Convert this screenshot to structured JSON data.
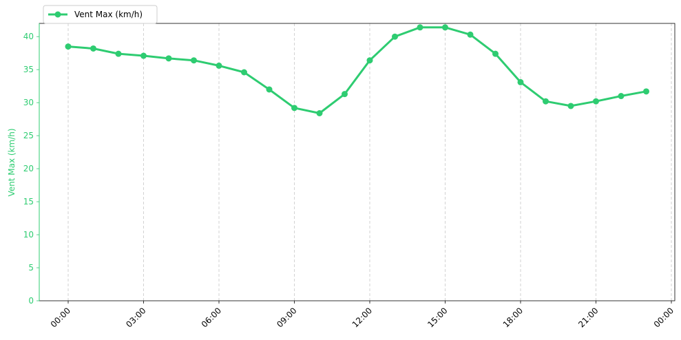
{
  "chart_data": {
    "type": "line",
    "title": "",
    "xlabel": "",
    "ylabel": "Vent Max (km/h)",
    "ylim": [
      0,
      42
    ],
    "grid": "vertical-dashed",
    "legend_position": "top-left",
    "color": "#2ecc71",
    "x_tick_labels": [
      "00:00",
      "03:00",
      "06:00",
      "09:00",
      "12:00",
      "15:00",
      "18:00",
      "21:00",
      "00:00"
    ],
    "x_tick_hours": [
      0,
      3,
      6,
      9,
      12,
      15,
      18,
      21,
      24
    ],
    "y_ticks": [
      0,
      5,
      10,
      15,
      20,
      25,
      30,
      35,
      40
    ],
    "series": [
      {
        "name": "Vent Max (km/h)",
        "x": [
          "00:00",
          "01:00",
          "02:00",
          "03:00",
          "04:00",
          "05:00",
          "06:00",
          "07:00",
          "08:00",
          "09:00",
          "10:00",
          "11:00",
          "12:00",
          "13:00",
          "14:00",
          "15:00",
          "16:00",
          "17:00",
          "18:00",
          "19:00",
          "20:00",
          "21:00",
          "22:00",
          "23:00"
        ],
        "x_hours": [
          0,
          1,
          2,
          3,
          4,
          5,
          6,
          7,
          8,
          9,
          10,
          11,
          12,
          13,
          14,
          15,
          16,
          17,
          18,
          19,
          20,
          21,
          22,
          23
        ],
        "values": [
          38.5,
          38.2,
          37.4,
          37.1,
          36.7,
          36.4,
          35.6,
          34.6,
          32.0,
          29.2,
          28.4,
          31.3,
          36.4,
          40.0,
          41.4,
          41.4,
          40.3,
          37.4,
          33.1,
          30.2,
          29.5,
          30.2,
          31.0,
          31.7
        ]
      }
    ]
  }
}
